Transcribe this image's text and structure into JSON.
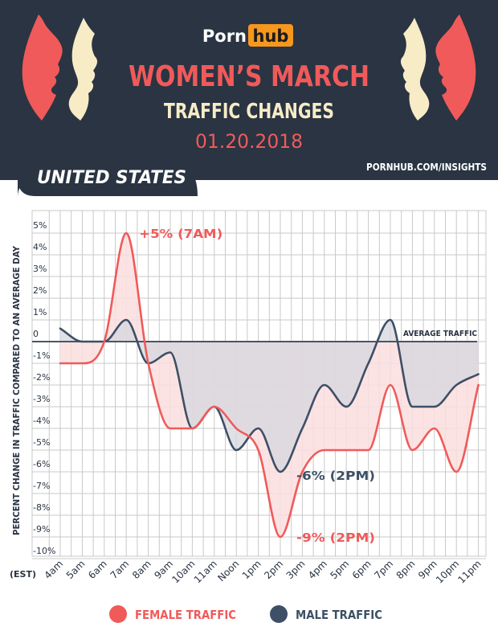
{
  "header": {
    "logo_text_left": "Porn",
    "logo_text_right": "hub",
    "title": "WOMEN’S MARCH",
    "subtitle": "TRAFFIC CHANGES",
    "date": "01.20.2018",
    "region": "UNITED STATES",
    "source": "PORNHUB.COM/INSIGHTS"
  },
  "colors": {
    "navy": "#2a3443",
    "female": "#f05a5a",
    "female_fill": "#fbdede",
    "male": "#3e4f66",
    "male_fill": "#d6d7dd",
    "cream": "#f7ecc6",
    "logo_orange": "#f7971d",
    "grid": "#c9c9c9"
  },
  "chart_data": {
    "type": "line",
    "title": "Women’s March Traffic Changes",
    "xlabel": "",
    "x_unit_label": "(EST)",
    "ylabel": "PERCENT CHANGE IN TRAFFIC COMPARED TO AN AVERAGE DAY",
    "ylim": [
      -10,
      5
    ],
    "y_ticks": [
      {
        "value": 5,
        "label": "5%"
      },
      {
        "value": 4,
        "label": "4%"
      },
      {
        "value": 3,
        "label": "3%"
      },
      {
        "value": 2,
        "label": "2%"
      },
      {
        "value": 1,
        "label": "1%"
      },
      {
        "value": 0,
        "label": "0"
      },
      {
        "value": -1,
        "label": "-1%"
      },
      {
        "value": -2,
        "label": "-2%"
      },
      {
        "value": -3,
        "label": "-3%"
      },
      {
        "value": -4,
        "label": "-4%"
      },
      {
        "value": -5,
        "label": "-5%"
      },
      {
        "value": -6,
        "label": "-6%"
      },
      {
        "value": -7,
        "label": "-7%"
      },
      {
        "value": -8,
        "label": "-8%"
      },
      {
        "value": -9,
        "label": "-9%"
      },
      {
        "value": -10,
        "label": "-10%"
      }
    ],
    "categories": [
      "4am",
      "5am",
      "6am",
      "7am",
      "8am",
      "9am",
      "10am",
      "11am",
      "Noon",
      "1pm",
      "2pm",
      "3pm",
      "4pm",
      "5pm",
      "6pm",
      "7pm",
      "8pm",
      "9pm",
      "10pm",
      "11pm"
    ],
    "series": [
      {
        "name": "FEMALE TRAFFIC",
        "values": [
          -1,
          -1,
          0,
          5,
          -1,
          -4,
          -4,
          -3,
          -4,
          -5,
          -9,
          -6,
          -5,
          -5,
          -5,
          -2,
          -5,
          -4,
          -6,
          -2
        ]
      },
      {
        "name": "MALE TRAFFIC",
        "values": [
          0.6,
          0,
          0,
          1,
          -1,
          -0.5,
          -4,
          -3,
          -5,
          -4,
          -6,
          -4,
          -2,
          -3,
          -1,
          1,
          -3,
          -3,
          -2,
          -1.5
        ]
      }
    ],
    "reference_line": {
      "value": 0,
      "label": "AVERAGE TRAFFIC"
    },
    "annotations": [
      {
        "text": "+5% (7AM)",
        "series": "FEMALE TRAFFIC",
        "category": "7am",
        "value": 5
      },
      {
        "text": "-6% (2PM)",
        "series": "MALE TRAFFIC",
        "category": "2pm",
        "value": -6
      },
      {
        "text": "-9% (2PM)",
        "series": "FEMALE TRAFFIC",
        "category": "2pm",
        "value": -9
      }
    ],
    "legend": {
      "position": "bottom"
    }
  }
}
